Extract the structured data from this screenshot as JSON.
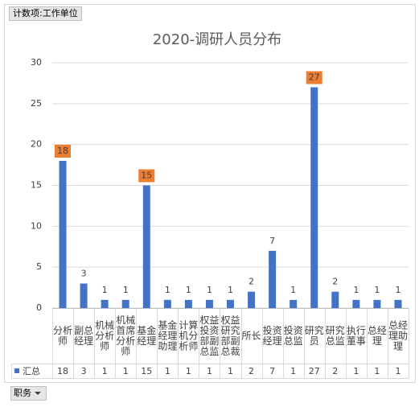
{
  "field_button": "计数项:工作单位",
  "filter_button": "职务",
  "chart_data": {
    "type": "bar",
    "title": "2020-调研人员分布",
    "categories": [
      "分析师",
      "副总经理",
      "机械分析师",
      "机械首席分析师",
      "基金经理",
      "基金经理助理",
      "计算机分析师",
      "权益投资部副总监",
      "权益研究部副总裁",
      "所长",
      "投资经理",
      "投资总监",
      "研究员",
      "研究总监",
      "执行董事",
      "总经理",
      "总经理助理"
    ],
    "series": [
      {
        "name": "汇总",
        "color": "#4472c4",
        "values": [
          18,
          3,
          1,
          1,
          15,
          1,
          1,
          1,
          1,
          2,
          7,
          1,
          27,
          2,
          1,
          1,
          1
        ],
        "value_label_backgrounds": [
          "#ed7d31",
          null,
          null,
          null,
          "#ed7d31",
          null,
          null,
          null,
          null,
          null,
          null,
          null,
          "#ed7d31",
          null,
          null,
          null,
          null
        ]
      }
    ],
    "ylim": [
      0,
      30
    ],
    "yticks": [
      0,
      5,
      10,
      15,
      20,
      25,
      30
    ],
    "grid": true,
    "data_table": true
  }
}
